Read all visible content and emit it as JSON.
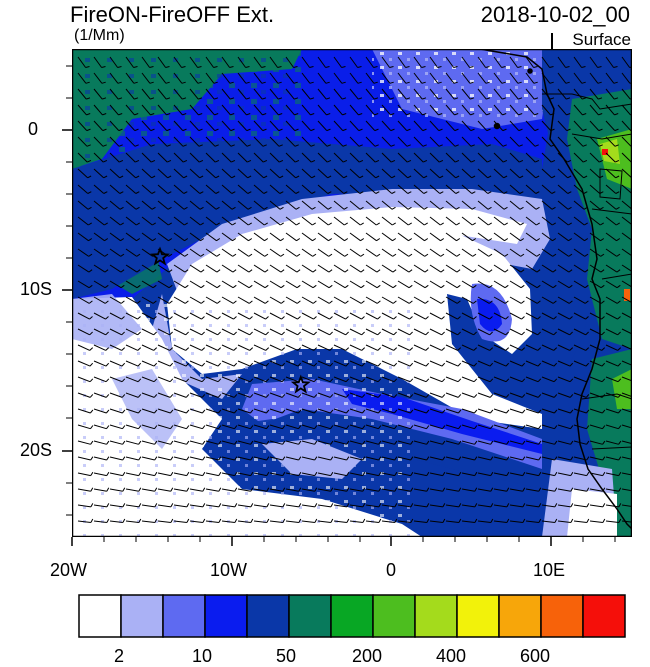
{
  "title": "FireON-FireOFF Ext.",
  "units": "(1/Mm)",
  "datetime": "2018-10-02_00",
  "level": "Surface",
  "lat_labels": [
    "0",
    "10S",
    "20S"
  ],
  "lon_labels": [
    "20W",
    "10W",
    "0",
    "10E"
  ],
  "colorbar": {
    "colors": [
      "#ffffff",
      "#aab1f5",
      "#5e6af1",
      "#0a1cef",
      "#0a37a8",
      "#087a5c",
      "#08a724",
      "#4dbe1f",
      "#a4db1c",
      "#f2f20a",
      "#f7a60a",
      "#f7620a",
      "#f50f0a"
    ],
    "labels": [
      "2",
      "10",
      "50",
      "200",
      "400",
      "600"
    ]
  },
  "markers": [
    {
      "name": "star-1",
      "lon": -14.5,
      "lat": -8.0
    },
    {
      "name": "star-2",
      "lon": -5.7,
      "lat": -16.0
    }
  ]
}
